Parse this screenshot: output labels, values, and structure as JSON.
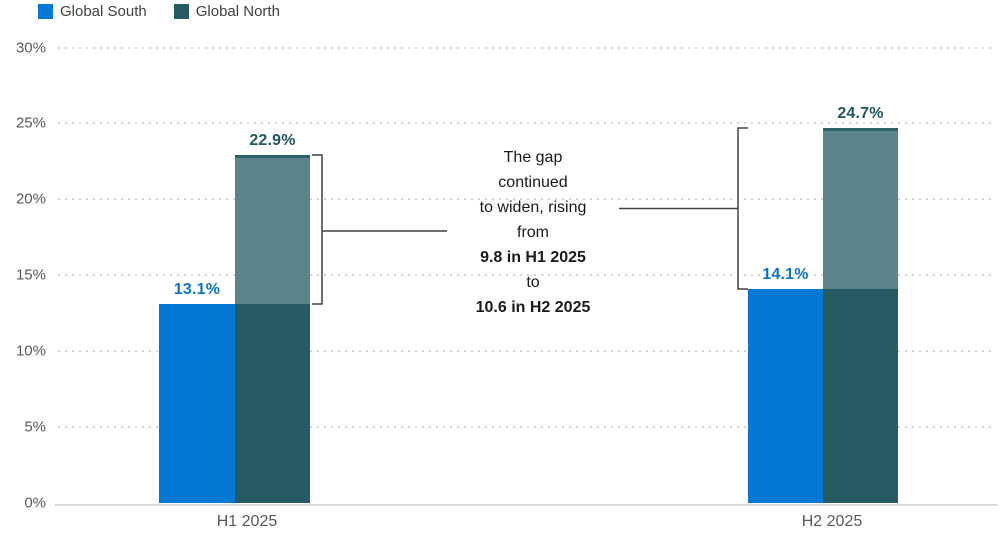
{
  "chart_data": {
    "type": "bar",
    "categories": [
      "H1 2025",
      "H2 2025"
    ],
    "series": [
      {
        "name": "Global South",
        "values": [
          13.1,
          14.1
        ]
      },
      {
        "name": "Global North",
        "values": [
          22.9,
          24.7
        ]
      }
    ],
    "value_labels": [
      [
        "13.1%",
        "22.9%"
      ],
      [
        "14.1%",
        "24.7%"
      ]
    ],
    "yticks": [
      "0%",
      "5%",
      "10%",
      "15%",
      "20%",
      "25%",
      "30%"
    ],
    "ylim": [
      0,
      30
    ],
    "grid": "dotted-horizontal",
    "legend_position": "top-left",
    "legend": [
      {
        "label": "Global South"
      },
      {
        "label": "Global North"
      }
    ],
    "annotation": {
      "lines": [
        {
          "text": "The gap",
          "bold": false
        },
        {
          "text": "continued",
          "bold": false
        },
        {
          "text": "to widen, rising",
          "bold": false
        },
        {
          "text": "from",
          "bold": false
        },
        {
          "text": "9.8 in H1 2025",
          "bold": true
        },
        {
          "text": "to",
          "bold": false
        },
        {
          "text": "10.6 in H2 2025",
          "bold": true
        }
      ],
      "gap_h1": 9.8,
      "gap_h2": 10.6
    }
  },
  "colors": {
    "global_south": "#0577D4",
    "global_north": "#255A62",
    "global_north_gap": "#5B8389",
    "global_north_gap_edge": "#2E626B",
    "south_label": "#0B74CE",
    "north_label": "#1F5761",
    "grid": "#D6D6D6",
    "axis_text": "#595959",
    "legend_text": "#404040",
    "connector": "#404040",
    "annotation_text": "#1A1A1A"
  }
}
